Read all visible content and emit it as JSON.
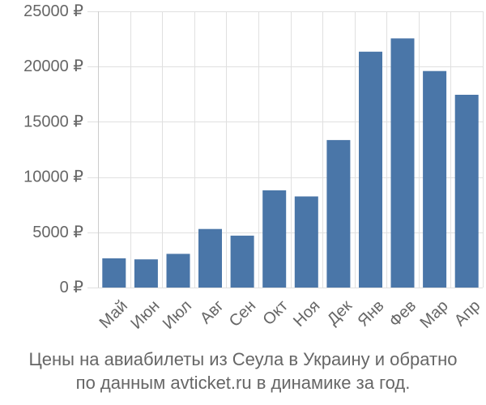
{
  "chart_data": {
    "type": "bar",
    "categories": [
      "Май",
      "Июн",
      "Июл",
      "Авг",
      "Сен",
      "Окт",
      "Ноя",
      "Дек",
      "Янв",
      "Фев",
      "Мар",
      "Апр"
    ],
    "values": [
      2650,
      2550,
      3050,
      5300,
      4700,
      8800,
      8250,
      13350,
      21350,
      22550,
      19600,
      17450
    ],
    "y_ticks": [
      "0 ₽",
      "5000 ₽",
      "10000 ₽",
      "15000 ₽",
      "20000 ₽",
      "25000 ₽"
    ],
    "ylim": [
      0,
      25000
    ],
    "grid": true,
    "bar_color": "#4a76a8",
    "title": "",
    "xlabel": "",
    "ylabel": ""
  },
  "caption": {
    "line1": "Цены на авиабилеты из Сеула в Украину и обратно",
    "line2": "по данным avticket.ru в динамике за год."
  }
}
